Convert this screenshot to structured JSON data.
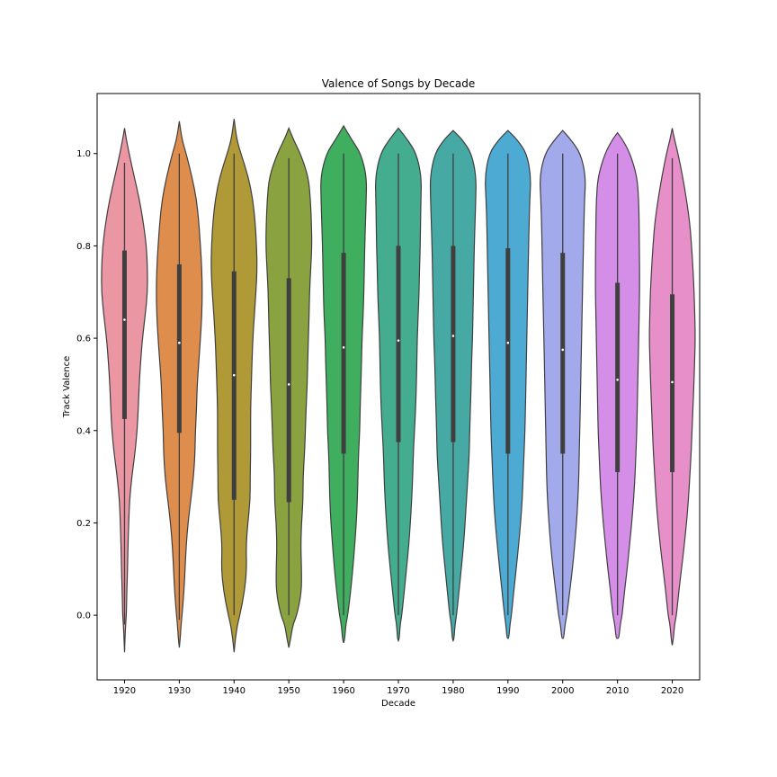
{
  "chart_data": {
    "type": "violin",
    "title": "Valence of Songs by Decade",
    "xlabel": "Decade",
    "ylabel": "Track Valence",
    "ylim": [
      -0.14,
      1.13
    ],
    "yticks": [
      "0.0",
      "0.2",
      "0.4",
      "0.6",
      "0.8",
      "1.0"
    ],
    "categories": [
      "1920",
      "1930",
      "1940",
      "1950",
      "1960",
      "1970",
      "1980",
      "1990",
      "2000",
      "2010",
      "2020"
    ],
    "colors": [
      "#ea96a3",
      "#df8d4d",
      "#b09a38",
      "#8aa340",
      "#3fae5f",
      "#44ac8f",
      "#46a9a3",
      "#4daad3",
      "#a2aaec",
      "#d48ee8",
      "#e68fc9"
    ],
    "grid": false,
    "legend": "none",
    "series": [
      {
        "decade": "1920",
        "median": 0.64,
        "q1": 0.425,
        "q3": 0.79,
        "whisker_low": -0.02,
        "whisker_high": 0.98,
        "min": -0.08,
        "max": 1.055
      },
      {
        "decade": "1930",
        "median": 0.59,
        "q1": 0.395,
        "q3": 0.76,
        "whisker_low": -0.01,
        "whisker_high": 1.0,
        "min": -0.07,
        "max": 1.07
      },
      {
        "decade": "1940",
        "median": 0.52,
        "q1": 0.25,
        "q3": 0.745,
        "whisker_low": 0.0,
        "whisker_high": 1.0,
        "min": -0.08,
        "max": 1.075
      },
      {
        "decade": "1950",
        "median": 0.5,
        "q1": 0.245,
        "q3": 0.73,
        "whisker_low": 0.0,
        "whisker_high": 0.99,
        "min": -0.07,
        "max": 1.055
      },
      {
        "decade": "1960",
        "median": 0.58,
        "q1": 0.35,
        "q3": 0.785,
        "whisker_low": 0.0,
        "whisker_high": 1.0,
        "min": -0.06,
        "max": 1.06
      },
      {
        "decade": "1970",
        "median": 0.595,
        "q1": 0.375,
        "q3": 0.8,
        "whisker_low": 0.0,
        "whisker_high": 1.0,
        "min": -0.055,
        "max": 1.055
      },
      {
        "decade": "1980",
        "median": 0.605,
        "q1": 0.375,
        "q3": 0.8,
        "whisker_low": 0.0,
        "whisker_high": 1.0,
        "min": -0.055,
        "max": 1.05
      },
      {
        "decade": "1990",
        "median": 0.59,
        "q1": 0.35,
        "q3": 0.795,
        "whisker_low": 0.0,
        "whisker_high": 1.0,
        "min": -0.05,
        "max": 1.05
      },
      {
        "decade": "2000",
        "median": 0.575,
        "q1": 0.35,
        "q3": 0.785,
        "whisker_low": 0.0,
        "whisker_high": 1.0,
        "min": -0.05,
        "max": 1.05
      },
      {
        "decade": "2010",
        "median": 0.51,
        "q1": 0.31,
        "q3": 0.72,
        "whisker_low": 0.0,
        "whisker_high": 1.0,
        "min": -0.05,
        "max": 1.045
      },
      {
        "decade": "2020",
        "median": 0.505,
        "q1": 0.31,
        "q3": 0.695,
        "whisker_low": 0.0,
        "whisker_high": 0.99,
        "min": -0.065,
        "max": 1.055
      }
    ],
    "density_profiles": {
      "y": [
        -0.08,
        -0.05,
        -0.02,
        0.0,
        0.05,
        0.1,
        0.15,
        0.2,
        0.25,
        0.3,
        0.35,
        0.4,
        0.45,
        0.5,
        0.55,
        0.6,
        0.65,
        0.7,
        0.75,
        0.8,
        0.85,
        0.9,
        0.95,
        1.0,
        1.03,
        1.06
      ],
      "1920": [
        0.0,
        0.02,
        0.05,
        0.08,
        0.1,
        0.13,
        0.15,
        0.18,
        0.22,
        0.32,
        0.45,
        0.55,
        0.6,
        0.64,
        0.7,
        0.78,
        0.9,
        1.0,
        1.0,
        0.95,
        0.82,
        0.65,
        0.42,
        0.2,
        0.08,
        0.0
      ],
      "1930": [
        0.0,
        0.04,
        0.08,
        0.12,
        0.2,
        0.25,
        0.3,
        0.38,
        0.5,
        0.62,
        0.68,
        0.7,
        0.75,
        0.78,
        0.85,
        0.92,
        0.98,
        1.0,
        0.98,
        0.92,
        0.85,
        0.75,
        0.55,
        0.3,
        0.12,
        0.0
      ],
      "1940": [
        0.0,
        0.06,
        0.15,
        0.25,
        0.45,
        0.55,
        0.52,
        0.6,
        0.7,
        0.7,
        0.72,
        0.72,
        0.72,
        0.75,
        0.78,
        0.82,
        0.88,
        0.95,
        1.0,
        0.98,
        0.92,
        0.82,
        0.62,
        0.3,
        0.12,
        0.0
      ],
      "1950": [
        0.0,
        0.08,
        0.18,
        0.35,
        0.55,
        0.55,
        0.52,
        0.55,
        0.62,
        0.62,
        0.68,
        0.72,
        0.75,
        0.8,
        0.82,
        0.85,
        0.88,
        0.9,
        0.95,
        1.0,
        0.98,
        0.94,
        0.85,
        0.5,
        0.2,
        0.0
      ],
      "1960": [
        0.0,
        0.05,
        0.1,
        0.18,
        0.3,
        0.4,
        0.48,
        0.55,
        0.6,
        0.62,
        0.65,
        0.7,
        0.72,
        0.75,
        0.78,
        0.8,
        0.85,
        0.88,
        0.9,
        0.92,
        0.95,
        0.98,
        1.0,
        0.75,
        0.35,
        0.0
      ],
      "1970": [
        0.0,
        0.04,
        0.08,
        0.15,
        0.25,
        0.35,
        0.45,
        0.52,
        0.58,
        0.62,
        0.65,
        0.7,
        0.75,
        0.78,
        0.8,
        0.82,
        0.86,
        0.9,
        0.92,
        0.95,
        0.96,
        0.98,
        1.0,
        0.78,
        0.4,
        0.0
      ],
      "1980": [
        0.0,
        0.04,
        0.08,
        0.15,
        0.25,
        0.35,
        0.45,
        0.52,
        0.58,
        0.64,
        0.7,
        0.72,
        0.75,
        0.78,
        0.8,
        0.84,
        0.86,
        0.88,
        0.9,
        0.92,
        0.95,
        0.98,
        1.0,
        0.8,
        0.4,
        0.0
      ],
      "1990": [
        0.0,
        0.04,
        0.09,
        0.15,
        0.25,
        0.36,
        0.46,
        0.55,
        0.62,
        0.66,
        0.7,
        0.74,
        0.76,
        0.78,
        0.8,
        0.82,
        0.84,
        0.86,
        0.88,
        0.9,
        0.92,
        0.95,
        1.0,
        0.82,
        0.4,
        0.0
      ],
      "2000": [
        0.0,
        0.04,
        0.1,
        0.18,
        0.3,
        0.42,
        0.52,
        0.6,
        0.66,
        0.7,
        0.72,
        0.74,
        0.76,
        0.78,
        0.8,
        0.82,
        0.84,
        0.86,
        0.88,
        0.9,
        0.92,
        0.95,
        1.0,
        0.78,
        0.35,
        0.0
      ],
      "2010": [
        0.0,
        0.06,
        0.12,
        0.2,
        0.3,
        0.42,
        0.52,
        0.62,
        0.7,
        0.76,
        0.8,
        0.84,
        0.86,
        0.88,
        0.9,
        0.92,
        0.94,
        0.96,
        0.96,
        0.95,
        0.94,
        0.92,
        0.85,
        0.55,
        0.22,
        0.0
      ],
      "2020": [
        0.0,
        0.05,
        0.1,
        0.18,
        0.28,
        0.4,
        0.52,
        0.62,
        0.7,
        0.76,
        0.82,
        0.86,
        0.9,
        0.94,
        0.97,
        1.0,
        0.98,
        0.95,
        0.9,
        0.84,
        0.76,
        0.62,
        0.45,
        0.25,
        0.1,
        0.0
      ]
    }
  }
}
